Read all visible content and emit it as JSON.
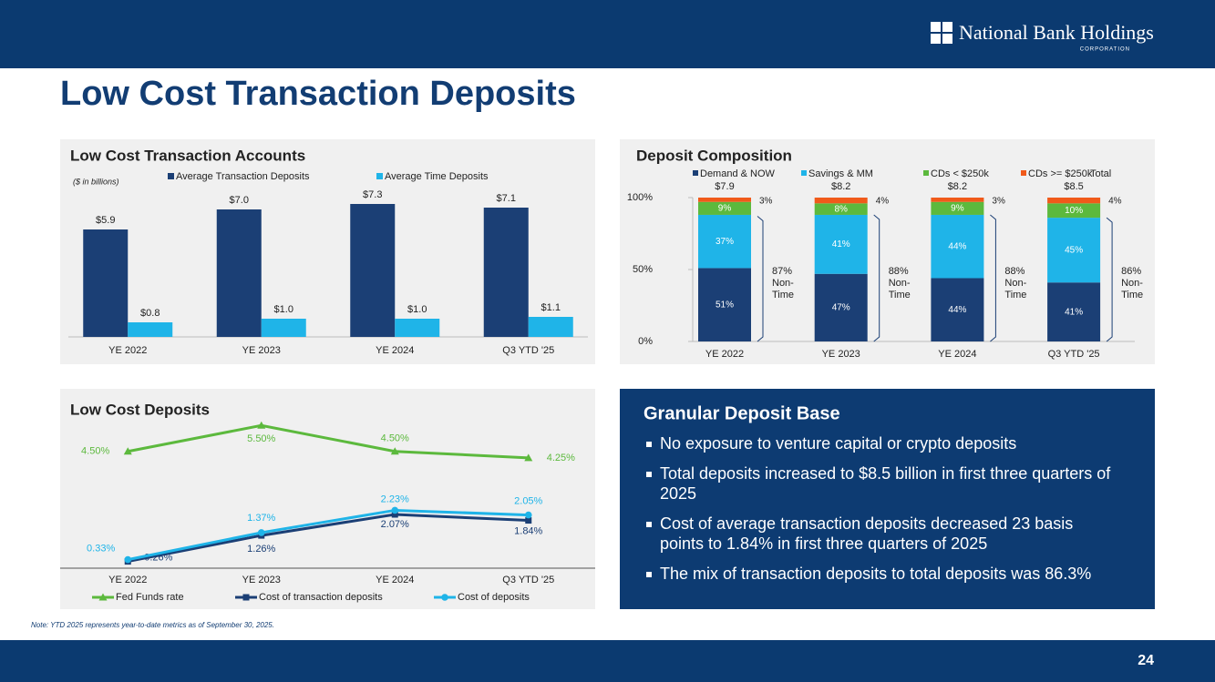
{
  "header": {
    "logo": "National Bank Holdings",
    "logo_sub": "CORPORATION"
  },
  "title": "Low Cost Transaction Deposits",
  "chart_data": [
    {
      "type": "bar",
      "title": "Low Cost Transaction Accounts",
      "subtitle": "($ in billions)",
      "categories": [
        "YE 2022",
        "YE 2023",
        "YE 2024",
        "Q3 YTD '25"
      ],
      "ylim": [
        0,
        8
      ],
      "series": [
        {
          "name": "Average Transaction Deposits",
          "color": "#1b3f75",
          "values": [
            5.9,
            7.0,
            7.3,
            7.1
          ],
          "value_labels": [
            "$5.9",
            "$7.0",
            "$7.3",
            "$7.1"
          ]
        },
        {
          "name": "Average Time Deposits",
          "color": "#1fb4e8",
          "values": [
            0.8,
            1.0,
            1.0,
            1.1
          ],
          "value_labels": [
            "$0.8",
            "$1.0",
            "$1.0",
            "$1.1"
          ]
        }
      ]
    },
    {
      "type": "stacked-bar",
      "title": "Deposit Composition",
      "categories": [
        "YE 2022",
        "YE 2023",
        "YE 2024",
        "Q3 YTD '25"
      ],
      "ylim": [
        0,
        100
      ],
      "yticks": [
        {
          "value": 0,
          "label": "0%"
        },
        {
          "value": 50,
          "label": "50%"
        },
        {
          "value": 100,
          "label": "100%"
        }
      ],
      "series": [
        {
          "name": "Demand & NOW",
          "color": "#1b3f75",
          "values": [
            51,
            47,
            44,
            41
          ],
          "value_labels": [
            "51%",
            "47%",
            "44%",
            "41%"
          ]
        },
        {
          "name": "Savings & MM",
          "color": "#1fb4e8",
          "values": [
            37,
            41,
            44,
            45
          ],
          "value_labels": [
            "37%",
            "41%",
            "44%",
            "45%"
          ]
        },
        {
          "name": "CDs < $250k",
          "color": "#5cb93d",
          "values": [
            9,
            8,
            9,
            10
          ],
          "value_labels": [
            "9%",
            "8%",
            "9%",
            "10%"
          ]
        },
        {
          "name": "CDs >= $250k",
          "color": "#f05a1a",
          "values": [
            3,
            4,
            3,
            4
          ],
          "value_labels": [
            "3%",
            "4%",
            "3%",
            "4%"
          ]
        }
      ],
      "totals": {
        "name": "Total",
        "values": [
          7.9,
          8.2,
          8.2,
          8.5
        ],
        "value_labels": [
          "$7.9",
          "$8.2",
          "$8.2",
          "$8.5"
        ]
      },
      "non_time": {
        "values": [
          87,
          88,
          88,
          86
        ],
        "value_labels": [
          "87%",
          "88%",
          "88%",
          "86%"
        ],
        "label_lines": [
          "Non-",
          "Time"
        ]
      }
    },
    {
      "type": "line",
      "title": "Low Cost Deposits",
      "categories": [
        "YE 2022",
        "YE 2023",
        "YE 2024",
        "Q3 YTD '25"
      ],
      "ylim": [
        0,
        6
      ],
      "series": [
        {
          "name": "Fed Funds rate",
          "color": "#5cb93d",
          "marker": "triangle",
          "values": [
            4.5,
            5.5,
            4.5,
            4.25
          ],
          "value_labels": [
            "4.50%",
            "5.50%",
            "4.50%",
            "4.25%"
          ]
        },
        {
          "name": "Cost of transaction deposits",
          "color": "#1b3f75",
          "marker": "square",
          "values": [
            0.26,
            1.26,
            2.07,
            1.84
          ],
          "value_labels": [
            "0.26%",
            "1.26%",
            "2.07%",
            "1.84%"
          ]
        },
        {
          "name": "Cost of deposits",
          "color": "#1fb4e8",
          "marker": "circle",
          "values": [
            0.33,
            1.37,
            2.23,
            2.05
          ],
          "value_labels": [
            "0.33%",
            "1.37%",
            "2.23%",
            "2.05%"
          ]
        }
      ]
    }
  ],
  "panel": {
    "title": "Granular Deposit Base",
    "bullets": [
      [
        "No exposure to venture capital or crypto deposits"
      ],
      [
        "Total deposits increased to $8.5 billion in first three quarters of",
        "2025"
      ],
      [
        "Cost of average transaction deposits decreased 23 basis",
        "points to 1.84% in first three quarters of 2025"
      ],
      [
        "The mix of transaction deposits to total deposits was 86.3%"
      ]
    ]
  },
  "note": "Note: YTD 2025 represents year-to-date metrics as of September 30, 2025.",
  "page_number": "24"
}
